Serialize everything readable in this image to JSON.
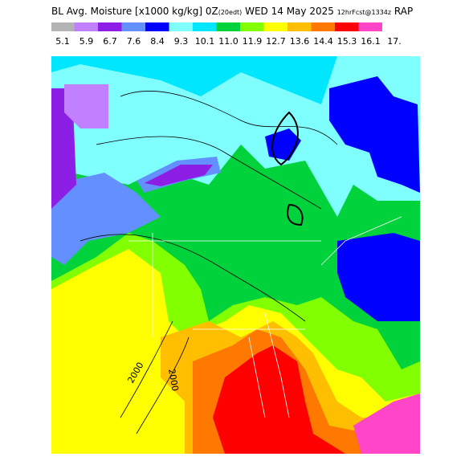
{
  "header": {
    "title": "BL Avg. Moisture [x1000 kg/kg] 0Z",
    "title_small": "(20edt)",
    "date": "WED 14 May 2025",
    "forecast": "12hrFcst@1334z",
    "model": "RAP"
  },
  "legend": {
    "labels": [
      "5.1",
      "5.9",
      "6.7",
      "7.6",
      "8.4",
      "9.3",
      "10.1",
      "11.0",
      "11.9",
      "12.7",
      "13.6",
      "14.4",
      "15.3",
      "16.1",
      "17."
    ],
    "colors": [
      "#b4b4b4",
      "#c080ff",
      "#8c1ee6",
      "#6490ff",
      "#0000ff",
      "#80ffff",
      "#00e6ff",
      "#00d23c",
      "#82ff00",
      "#ffff00",
      "#ffbe00",
      "#ff7800",
      "#ff0000",
      "#ff46c8",
      "#ff96ff"
    ]
  },
  "map": {
    "contour_labels": [
      "2000",
      "2000"
    ]
  }
}
